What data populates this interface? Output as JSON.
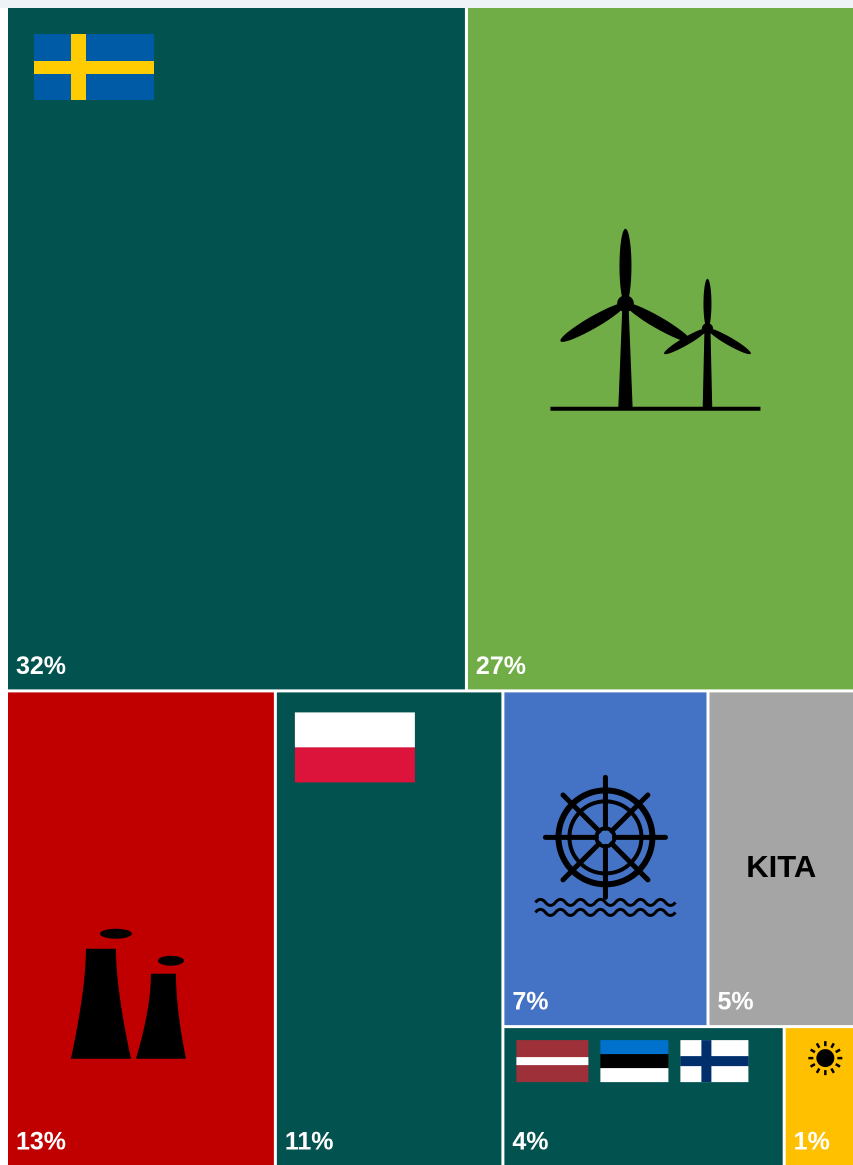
{
  "chart_data": {
    "type": "treemap",
    "categories": [
      null,
      null,
      null,
      null,
      null,
      "KITA",
      null,
      null
    ],
    "values": [
      32,
      27,
      13,
      11,
      7,
      5,
      4,
      1
    ],
    "value_labels": [
      "32%",
      "27%",
      "13%",
      "11%",
      "7%",
      "5%",
      "4%",
      "1%"
    ],
    "colors": [
      "#02524f",
      "#70ad47",
      "#c00000",
      "#02524f",
      "#4472c4",
      "#a5a5a5",
      "#02524f",
      "#ffc000"
    ]
  }
}
